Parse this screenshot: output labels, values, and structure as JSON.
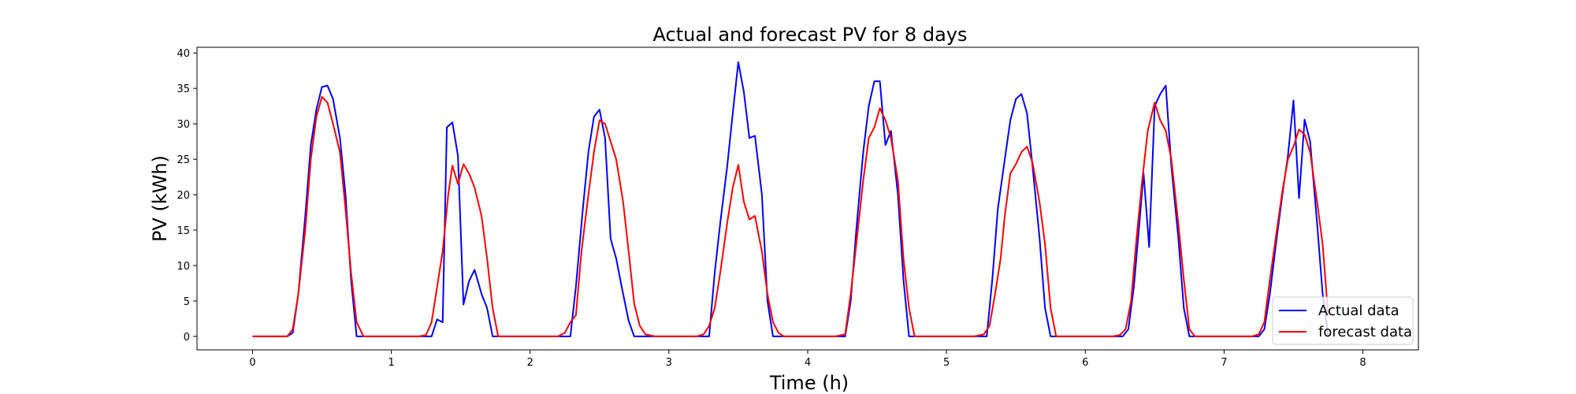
{
  "chart_data": {
    "type": "line",
    "title": "Actual and forecast PV for 8 days",
    "xlabel": "Time (h)",
    "ylabel": "PV (kWh)",
    "xlim": [
      -0.4,
      8.4
    ],
    "ylim": [
      -1.9,
      40.8
    ],
    "xticks": [
      0,
      1,
      2,
      3,
      4,
      5,
      6,
      7,
      8
    ],
    "yticks": [
      0,
      5,
      10,
      15,
      20,
      25,
      30,
      35,
      40
    ],
    "grid": false,
    "legend_position": "lower-right",
    "series": [
      {
        "name": "Actual data",
        "color": "#0000ff",
        "points": [
          [
            0.0,
            0
          ],
          [
            0.08,
            0
          ],
          [
            0.17,
            0
          ],
          [
            0.25,
            0
          ],
          [
            0.29,
            0.5
          ],
          [
            0.33,
            6
          ],
          [
            0.38,
            17
          ],
          [
            0.42,
            27
          ],
          [
            0.46,
            32
          ],
          [
            0.5,
            35.2
          ],
          [
            0.54,
            35.4
          ],
          [
            0.58,
            33.5
          ],
          [
            0.63,
            28
          ],
          [
            0.67,
            20
          ],
          [
            0.71,
            8
          ],
          [
            0.75,
            0
          ],
          [
            0.8,
            0
          ],
          [
            0.9,
            0
          ],
          [
            1.0,
            0
          ],
          [
            1.1,
            0
          ],
          [
            1.2,
            0
          ],
          [
            1.29,
            0
          ],
          [
            1.33,
            2.4
          ],
          [
            1.37,
            2.0
          ],
          [
            1.4,
            29.5
          ],
          [
            1.44,
            30.2
          ],
          [
            1.48,
            25.5
          ],
          [
            1.52,
            4.5
          ],
          [
            1.56,
            7.8
          ],
          [
            1.6,
            9.4
          ],
          [
            1.65,
            6.0
          ],
          [
            1.69,
            4.0
          ],
          [
            1.73,
            0
          ],
          [
            1.8,
            0
          ],
          [
            1.9,
            0
          ],
          [
            2.0,
            0
          ],
          [
            2.1,
            0
          ],
          [
            2.2,
            0
          ],
          [
            2.29,
            0
          ],
          [
            2.33,
            7
          ],
          [
            2.38,
            18
          ],
          [
            2.42,
            26
          ],
          [
            2.46,
            31
          ],
          [
            2.5,
            32.0
          ],
          [
            2.54,
            28
          ],
          [
            2.58,
            13.8
          ],
          [
            2.62,
            11
          ],
          [
            2.67,
            6
          ],
          [
            2.71,
            2.2
          ],
          [
            2.75,
            0
          ],
          [
            2.85,
            0
          ],
          [
            3.0,
            0
          ],
          [
            3.1,
            0
          ],
          [
            3.2,
            0
          ],
          [
            3.29,
            0
          ],
          [
            3.33,
            9
          ],
          [
            3.37,
            16
          ],
          [
            3.42,
            24
          ],
          [
            3.46,
            31.5
          ],
          [
            3.5,
            38.7
          ],
          [
            3.54,
            34.5
          ],
          [
            3.58,
            28
          ],
          [
            3.62,
            28.3
          ],
          [
            3.67,
            20
          ],
          [
            3.71,
            5
          ],
          [
            3.75,
            0
          ],
          [
            3.85,
            0
          ],
          [
            4.0,
            0
          ],
          [
            4.1,
            0
          ],
          [
            4.2,
            0
          ],
          [
            4.27,
            0
          ],
          [
            4.31,
            5
          ],
          [
            4.35,
            15
          ],
          [
            4.4,
            26
          ],
          [
            4.44,
            32.5
          ],
          [
            4.48,
            36.0
          ],
          [
            4.52,
            36.0
          ],
          [
            4.56,
            27
          ],
          [
            4.6,
            29
          ],
          [
            4.65,
            20
          ],
          [
            4.69,
            8
          ],
          [
            4.73,
            0
          ],
          [
            4.8,
            0
          ],
          [
            4.9,
            0
          ],
          [
            5.0,
            0
          ],
          [
            5.1,
            0
          ],
          [
            5.2,
            0
          ],
          [
            5.29,
            0
          ],
          [
            5.33,
            8
          ],
          [
            5.37,
            18
          ],
          [
            5.42,
            25
          ],
          [
            5.46,
            30.5
          ],
          [
            5.5,
            33.5
          ],
          [
            5.54,
            34.2
          ],
          [
            5.58,
            31.5
          ],
          [
            5.62,
            24
          ],
          [
            5.67,
            14
          ],
          [
            5.71,
            4
          ],
          [
            5.75,
            0
          ],
          [
            5.85,
            0
          ],
          [
            6.0,
            0
          ],
          [
            6.1,
            0
          ],
          [
            6.2,
            0
          ],
          [
            6.27,
            0
          ],
          [
            6.31,
            1
          ],
          [
            6.35,
            7
          ],
          [
            6.39,
            16
          ],
          [
            6.42,
            23
          ],
          [
            6.46,
            12.6
          ],
          [
            6.5,
            32.5
          ],
          [
            6.54,
            34.2
          ],
          [
            6.58,
            35.4
          ],
          [
            6.62,
            24
          ],
          [
            6.67,
            14
          ],
          [
            6.71,
            4
          ],
          [
            6.75,
            0
          ],
          [
            6.85,
            0
          ],
          [
            7.0,
            0
          ],
          [
            7.1,
            0
          ],
          [
            7.2,
            0
          ],
          [
            7.25,
            0
          ],
          [
            7.29,
            1
          ],
          [
            7.33,
            6
          ],
          [
            7.38,
            14
          ],
          [
            7.42,
            20
          ],
          [
            7.46,
            25.5
          ],
          [
            7.5,
            33.3
          ],
          [
            7.54,
            19.5
          ],
          [
            7.58,
            30.6
          ],
          [
            7.62,
            27.5
          ],
          [
            7.67,
            16
          ],
          [
            7.71,
            6
          ],
          [
            7.75,
            0
          ]
        ]
      },
      {
        "name": "forecast data",
        "color": "#ff0000",
        "points": [
          [
            0.0,
            0
          ],
          [
            0.08,
            0
          ],
          [
            0.17,
            0
          ],
          [
            0.25,
            0
          ],
          [
            0.29,
            1
          ],
          [
            0.33,
            6
          ],
          [
            0.38,
            15
          ],
          [
            0.42,
            25
          ],
          [
            0.46,
            31
          ],
          [
            0.5,
            33.8
          ],
          [
            0.54,
            33
          ],
          [
            0.58,
            30
          ],
          [
            0.63,
            26
          ],
          [
            0.67,
            18
          ],
          [
            0.71,
            9
          ],
          [
            0.75,
            2
          ],
          [
            0.8,
            0
          ],
          [
            0.9,
            0
          ],
          [
            1.0,
            0
          ],
          [
            1.1,
            0
          ],
          [
            1.2,
            0
          ],
          [
            1.25,
            0.2
          ],
          [
            1.29,
            2
          ],
          [
            1.33,
            7
          ],
          [
            1.37,
            12
          ],
          [
            1.41,
            20
          ],
          [
            1.44,
            24.1
          ],
          [
            1.48,
            21.5
          ],
          [
            1.52,
            24.3
          ],
          [
            1.56,
            23
          ],
          [
            1.6,
            21
          ],
          [
            1.65,
            17
          ],
          [
            1.69,
            11
          ],
          [
            1.73,
            4
          ],
          [
            1.77,
            0
          ],
          [
            1.85,
            0
          ],
          [
            2.0,
            0
          ],
          [
            2.1,
            0
          ],
          [
            2.2,
            0
          ],
          [
            2.25,
            0.5
          ],
          [
            2.29,
            2
          ],
          [
            2.33,
            3
          ],
          [
            2.37,
            12
          ],
          [
            2.42,
            20
          ],
          [
            2.46,
            26
          ],
          [
            2.5,
            30.5
          ],
          [
            2.54,
            30
          ],
          [
            2.58,
            27.5
          ],
          [
            2.62,
            25
          ],
          [
            2.67,
            19
          ],
          [
            2.71,
            12
          ],
          [
            2.75,
            4.6
          ],
          [
            2.79,
            1.5
          ],
          [
            2.83,
            0.3
          ],
          [
            2.9,
            0
          ],
          [
            3.0,
            0
          ],
          [
            3.1,
            0
          ],
          [
            3.2,
            0
          ],
          [
            3.25,
            0.3
          ],
          [
            3.29,
            1.5
          ],
          [
            3.33,
            4
          ],
          [
            3.37,
            9
          ],
          [
            3.42,
            16
          ],
          [
            3.46,
            21
          ],
          [
            3.5,
            24.2
          ],
          [
            3.54,
            19
          ],
          [
            3.58,
            16.5
          ],
          [
            3.62,
            17
          ],
          [
            3.67,
            12
          ],
          [
            3.71,
            6
          ],
          [
            3.75,
            2
          ],
          [
            3.79,
            0.5
          ],
          [
            3.83,
            0
          ],
          [
            3.9,
            0
          ],
          [
            4.0,
            0
          ],
          [
            4.1,
            0
          ],
          [
            4.2,
            0
          ],
          [
            4.27,
            0.3
          ],
          [
            4.31,
            6
          ],
          [
            4.35,
            13
          ],
          [
            4.4,
            22
          ],
          [
            4.44,
            28
          ],
          [
            4.48,
            29.5
          ],
          [
            4.52,
            32.2
          ],
          [
            4.56,
            30.5
          ],
          [
            4.6,
            28
          ],
          [
            4.65,
            22
          ],
          [
            4.69,
            11
          ],
          [
            4.73,
            4
          ],
          [
            4.77,
            0
          ],
          [
            4.85,
            0
          ],
          [
            5.0,
            0
          ],
          [
            5.1,
            0
          ],
          [
            5.2,
            0
          ],
          [
            5.27,
            0.3
          ],
          [
            5.31,
            1.5
          ],
          [
            5.35,
            6
          ],
          [
            5.39,
            11
          ],
          [
            5.42,
            17
          ],
          [
            5.46,
            23
          ],
          [
            5.5,
            24.3
          ],
          [
            5.54,
            26
          ],
          [
            5.58,
            26.8
          ],
          [
            5.62,
            24.5
          ],
          [
            5.67,
            19
          ],
          [
            5.71,
            13
          ],
          [
            5.75,
            4
          ],
          [
            5.79,
            0
          ],
          [
            5.85,
            0
          ],
          [
            6.0,
            0
          ],
          [
            6.1,
            0
          ],
          [
            6.2,
            0
          ],
          [
            6.25,
            0.2
          ],
          [
            6.29,
            1
          ],
          [
            6.33,
            5
          ],
          [
            6.37,
            14
          ],
          [
            6.41,
            22
          ],
          [
            6.45,
            29
          ],
          [
            6.5,
            33.0
          ],
          [
            6.54,
            30.5
          ],
          [
            6.58,
            29
          ],
          [
            6.62,
            25
          ],
          [
            6.67,
            16
          ],
          [
            6.71,
            8
          ],
          [
            6.75,
            1
          ],
          [
            6.79,
            0
          ],
          [
            6.85,
            0
          ],
          [
            7.0,
            0
          ],
          [
            7.1,
            0
          ],
          [
            7.2,
            0
          ],
          [
            7.25,
            0.3
          ],
          [
            7.29,
            2
          ],
          [
            7.33,
            8
          ],
          [
            7.38,
            15
          ],
          [
            7.42,
            20.5
          ],
          [
            7.46,
            25
          ],
          [
            7.5,
            26.8
          ],
          [
            7.54,
            29.2
          ],
          [
            7.58,
            28.5
          ],
          [
            7.62,
            26
          ],
          [
            7.67,
            19
          ],
          [
            7.71,
            13
          ],
          [
            7.75,
            3
          ]
        ]
      }
    ]
  }
}
